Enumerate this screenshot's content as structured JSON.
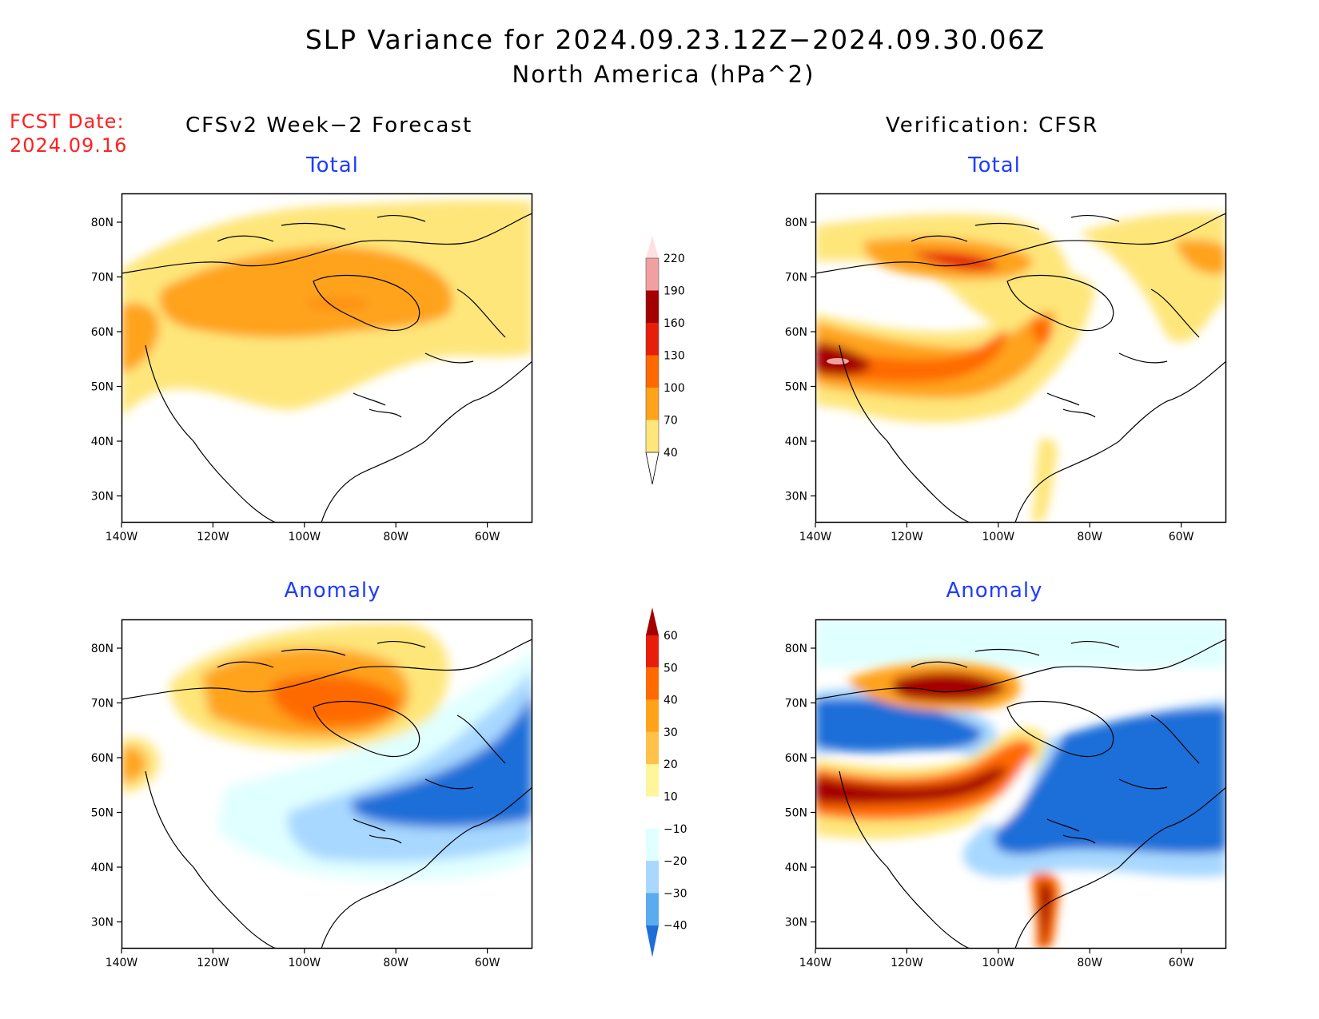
{
  "title": "SLP Variance for 2024.09.23.12Z−2024.09.30.06Z",
  "subtitle": "North America (hPa^2)",
  "fcst_label": "FCST Date:",
  "fcst_date": "2024.09.16",
  "left_column_title": "CFSv2 Week−2 Forecast",
  "right_column_title": "Verification: CFSR",
  "panels": {
    "fc_total_label": "Total",
    "fc_anom_label": "Anomaly",
    "ver_total_label": "Total",
    "ver_anom_label": "Anomaly"
  },
  "axes": {
    "lat_labels": [
      "80N",
      "70N",
      "60N",
      "50N",
      "40N",
      "30N"
    ],
    "lon_labels": [
      "140W",
      "120W",
      "100W",
      "80W",
      "60W"
    ]
  },
  "total_scale": {
    "levels": [
      "40",
      "70",
      "100",
      "130",
      "160",
      "190",
      "220"
    ],
    "colors": [
      "#fee67a",
      "#ffa31a",
      "#ff6a00",
      "#e61e0a",
      "#a50000",
      "#f0a0a0",
      "#ffe0e0"
    ]
  },
  "anomaly_scale": {
    "levels": [
      "60",
      "50",
      "40",
      "30",
      "20",
      "10",
      "−10",
      "−20",
      "−30",
      "−40"
    ],
    "colors_warm": [
      "#a50000",
      "#e61e0a",
      "#ff6a00",
      "#ffa31a",
      "#ffc14a",
      "#fff59a"
    ],
    "colors_cool": [
      "#e0ffff",
      "#a8d8ff",
      "#5aabf0",
      "#1e6ed8"
    ]
  }
}
